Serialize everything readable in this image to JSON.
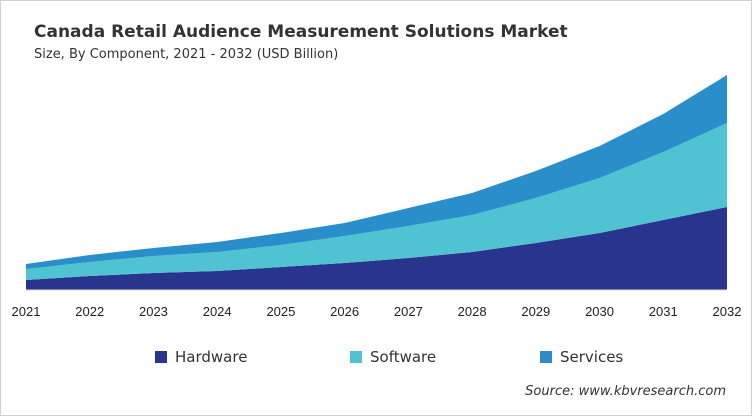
{
  "title": "Canada Retail Audience Measurement Solutions Market",
  "subtitle": "Size, By Component, 2021 - 2032 (USD Billion)",
  "source": "Source: www.kbvresearch.com",
  "chart_data": {
    "type": "area",
    "stacked": true,
    "title": "Canada Retail Audience Measurement Solutions Market",
    "subtitle": "Size, By Component, 2021 - 2032 (USD Billion)",
    "x": [
      "2021",
      "2022",
      "2023",
      "2024",
      "2025",
      "2026",
      "2027",
      "2028",
      "2029",
      "2030",
      "2031",
      "2032"
    ],
    "series": [
      {
        "name": "Hardware",
        "color": "#29348e",
        "values": [
          0.1,
          0.14,
          0.17,
          0.19,
          0.23,
          0.27,
          0.32,
          0.38,
          0.47,
          0.57,
          0.7,
          0.83
        ]
      },
      {
        "name": "Software",
        "color": "#4fc3d1",
        "values": [
          0.11,
          0.14,
          0.17,
          0.19,
          0.22,
          0.27,
          0.32,
          0.37,
          0.45,
          0.55,
          0.68,
          0.84
        ]
      },
      {
        "name": "Services",
        "color": "#2a8ecb",
        "values": [
          0.05,
          0.07,
          0.08,
          0.1,
          0.12,
          0.13,
          0.18,
          0.22,
          0.27,
          0.32,
          0.38,
          0.48
        ]
      }
    ],
    "ylim": [
      0,
      2.15
    ],
    "y_axis_shown": false,
    "grid": false,
    "legend_position": "bottom"
  }
}
